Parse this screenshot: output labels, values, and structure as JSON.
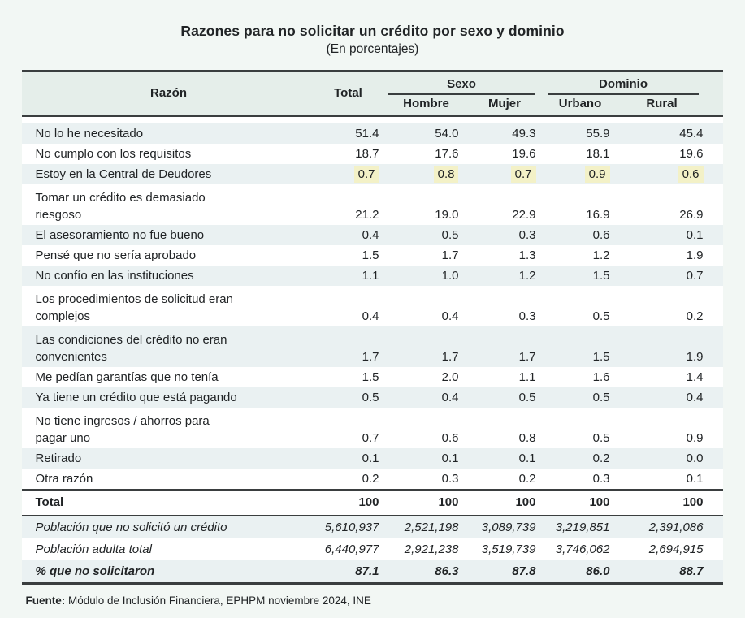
{
  "title": "Razones para no solicitar un crédito por sexo y dominio",
  "subtitle": "(En porcentajes)",
  "chart_data": {
    "type": "table",
    "title": "Razones para no solicitar un crédito por sexo y dominio",
    "subtitle": "(En porcentajes)",
    "columns": [
      "Razón",
      "Total",
      "Hombre",
      "Mujer",
      "Urbano",
      "Rural"
    ],
    "column_groups": [
      {
        "label": "Sexo",
        "columns": [
          "Hombre",
          "Mujer"
        ]
      },
      {
        "label": "Dominio",
        "columns": [
          "Urbano",
          "Rural"
        ]
      }
    ],
    "rows": [
      {
        "reason": "No lo he necesitado",
        "values": [
          "51.4",
          "54.0",
          "49.3",
          "55.9",
          "45.4"
        ]
      },
      {
        "reason": "No cumplo con los requisitos",
        "values": [
          "18.7",
          "17.6",
          "19.6",
          "18.1",
          "19.6"
        ]
      },
      {
        "reason": "Estoy en la Central de Deudores",
        "values": [
          "0.7",
          "0.8",
          "0.7",
          "0.9",
          "0.6"
        ],
        "highlight": true
      },
      {
        "reason": "Tomar un crédito es demasiado\nriesgoso",
        "values": [
          "21.2",
          "19.0",
          "22.9",
          "16.9",
          "26.9"
        ]
      },
      {
        "reason": "El asesoramiento no fue bueno",
        "values": [
          "0.4",
          "0.5",
          "0.3",
          "0.6",
          "0.1"
        ]
      },
      {
        "reason": "Pensé que no sería aprobado",
        "values": [
          "1.5",
          "1.7",
          "1.3",
          "1.2",
          "1.9"
        ]
      },
      {
        "reason": "No confío en las instituciones",
        "values": [
          "1.1",
          "1.0",
          "1.2",
          "1.5",
          "0.7"
        ]
      },
      {
        "reason": "Los procedimientos de solicitud eran\ncomplejos",
        "values": [
          "0.4",
          "0.4",
          "0.3",
          "0.5",
          "0.2"
        ]
      },
      {
        "reason": "Las condiciones del crédito no eran\nconvenientes",
        "values": [
          "1.7",
          "1.7",
          "1.7",
          "1.5",
          "1.9"
        ]
      },
      {
        "reason": "Me pedían garantías que no tenía",
        "values": [
          "1.5",
          "2.0",
          "1.1",
          "1.6",
          "1.4"
        ]
      },
      {
        "reason": "Ya tiene un crédito que está pagando",
        "values": [
          "0.5",
          "0.4",
          "0.5",
          "0.5",
          "0.4"
        ]
      },
      {
        "reason": "No tiene ingresos / ahorros para\npagar uno",
        "values": [
          "0.7",
          "0.6",
          "0.8",
          "0.5",
          "0.9"
        ]
      },
      {
        "reason": "Retirado",
        "values": [
          "0.1",
          "0.1",
          "0.1",
          "0.2",
          "0.0"
        ]
      },
      {
        "reason": "Otra razón",
        "values": [
          "0.2",
          "0.3",
          "0.2",
          "0.3",
          "0.1"
        ]
      }
    ],
    "total_row": {
      "reason": "Total",
      "values": [
        "100",
        "100",
        "100",
        "100",
        "100"
      ]
    },
    "summary_rows": [
      {
        "reason": "Población que no solicitó un crédito",
        "values": [
          "5,610,937",
          "2,521,198",
          "3,089,739",
          "3,219,851",
          "2,391,086"
        ]
      },
      {
        "reason": "Población adulta total",
        "values": [
          "6,440,977",
          "2,921,238",
          "3,519,739",
          "3,746,062",
          "2,694,915"
        ]
      },
      {
        "reason": "% que no solicitaron",
        "values": [
          "87.1",
          "86.3",
          "87.8",
          "86.0",
          "88.7"
        ],
        "bold": true
      }
    ]
  },
  "footer": {
    "source_label": "Fuente:",
    "source_text": " Módulo de Inclusión Financiera, EPHPM noviembre 2024, INE"
  },
  "colors": {
    "page_bg": "#f2f7f4",
    "header_bg": "#e5eeea",
    "row_shade": "#eaf1f2",
    "row_white": "#ffffff",
    "highlight": "#f3f1c7",
    "border": "#3a3e3f",
    "text": "#212426"
  }
}
